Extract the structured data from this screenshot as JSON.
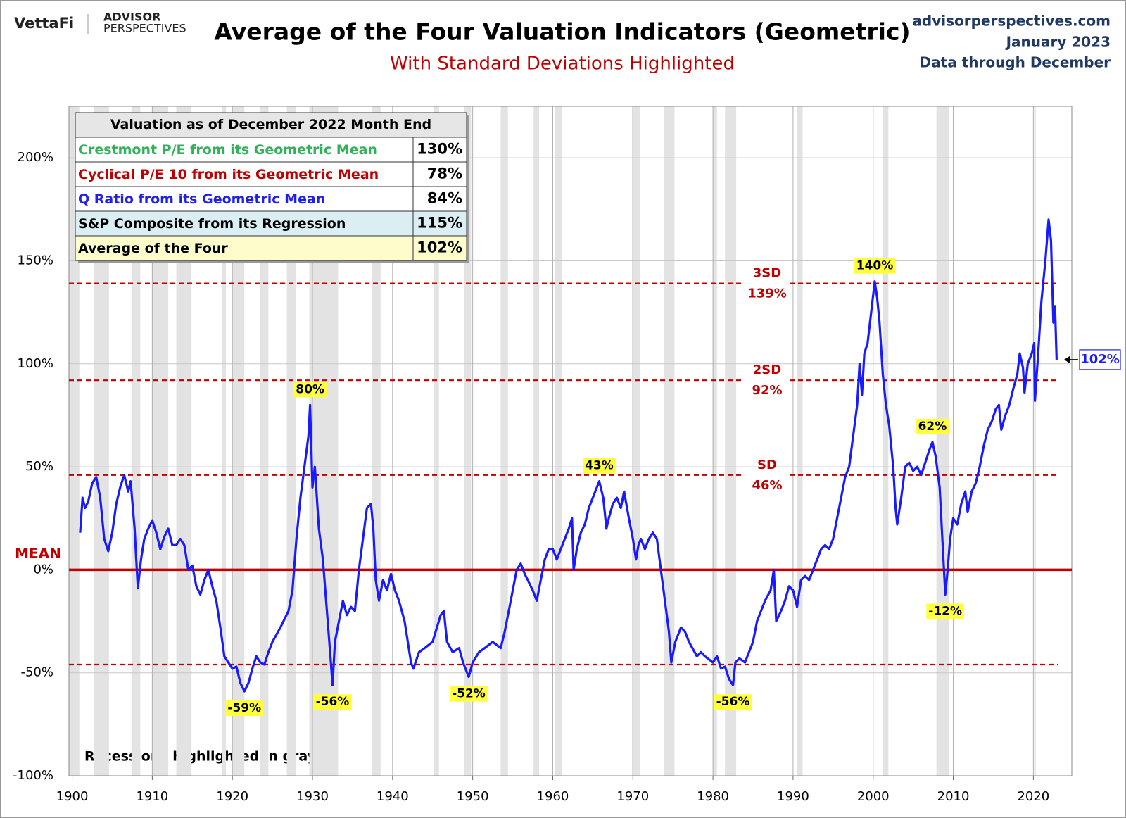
{
  "header": {
    "logo": "VettaFi",
    "brand_top": "ADVISOR",
    "brand_bottom": "PERSPECTIVES",
    "site": "advisorperspectives.com",
    "date": "January 2023",
    "data_note": "Data through December"
  },
  "chart_data": {
    "type": "line",
    "title": "Average of the Four Valuation Indicators (Geometric)",
    "subtitle": "With Standard Deviations Highlighted",
    "note": "Recessions highlighted in gray",
    "xlim": [
      1899.6,
      2024.8
    ],
    "xticks": [
      1900,
      1910,
      1920,
      1930,
      1940,
      1950,
      1960,
      1970,
      1980,
      1990,
      2000,
      2010,
      2020
    ],
    "ylim": [
      -100,
      225
    ],
    "yticks": [
      {
        "value": -100,
        "label": "-100%"
      },
      {
        "value": -50,
        "label": "-50%"
      },
      {
        "value": 0,
        "label": "0%"
      },
      {
        "value": 50,
        "label": "50%"
      },
      {
        "value": 100,
        "label": "100%"
      },
      {
        "value": 150,
        "label": "150%"
      },
      {
        "value": 200,
        "label": "200%"
      }
    ],
    "grid": true,
    "x": [
      1901.0,
      1901.3,
      1901.6,
      1902.0,
      1902.5,
      1903.0,
      1903.5,
      1904.0,
      1904.5,
      1905.0,
      1905.5,
      1906.0,
      1906.5,
      1907.0,
      1907.3,
      1907.8,
      1908.0,
      1908.2,
      1908.6,
      1909.0,
      1909.5,
      1910.0,
      1910.5,
      1911.0,
      1911.5,
      1912.0,
      1912.5,
      1913.0,
      1913.5,
      1914.0,
      1914.5,
      1915.0,
      1915.5,
      1916.0,
      1916.5,
      1917.0,
      1917.5,
      1918.0,
      1918.5,
      1919.0,
      1919.5,
      1920.0,
      1920.5,
      1921.0,
      1921.5,
      1922.0,
      1922.5,
      1923.0,
      1923.5,
      1924.0,
      1924.5,
      1925.0,
      1926.0,
      1927.0,
      1927.5,
      1928.0,
      1928.5,
      1929.0,
      1929.5,
      1929.7,
      1930.0,
      1930.3,
      1930.8,
      1931.3,
      1931.8,
      1932.3,
      1932.5,
      1932.8,
      1933.3,
      1933.8,
      1934.3,
      1934.8,
      1935.3,
      1935.8,
      1936.3,
      1936.8,
      1937.3,
      1937.6,
      1937.9,
      1938.3,
      1938.8,
      1939.3,
      1939.8,
      1940.3,
      1940.8,
      1941.5,
      1942.3,
      1942.6,
      1943.3,
      1944.0,
      1945.0,
      1946.0,
      1946.4,
      1946.8,
      1947.5,
      1948.3,
      1948.8,
      1949.5,
      1950.0,
      1950.8,
      1951.5,
      1952.5,
      1953.5,
      1954.0,
      1954.5,
      1955.0,
      1955.5,
      1956.0,
      1956.5,
      1957.5,
      1958.0,
      1958.5,
      1959.0,
      1959.5,
      1960.0,
      1960.5,
      1961.0,
      1961.5,
      1962.0,
      1962.4,
      1962.6,
      1963.0,
      1963.5,
      1964.0,
      1964.5,
      1965.0,
      1965.5,
      1965.8,
      1966.3,
      1966.7,
      1967.0,
      1967.5,
      1968.0,
      1968.5,
      1968.9,
      1969.5,
      1970.0,
      1970.4,
      1970.7,
      1971.0,
      1971.5,
      1972.0,
      1972.5,
      1973.0,
      1973.5,
      1974.0,
      1974.5,
      1974.8,
      1975.3,
      1976.0,
      1976.5,
      1977.0,
      1978.0,
      1978.5,
      1979.0,
      1980.0,
      1980.5,
      1981.0,
      1981.5,
      1982.0,
      1982.5,
      1982.8,
      1983.3,
      1984.0,
      1984.5,
      1985.0,
      1985.5,
      1986.0,
      1986.5,
      1987.2,
      1987.6,
      1987.9,
      1988.5,
      1989.0,
      1989.5,
      1990.0,
      1990.5,
      1991.0,
      1991.5,
      1992.0,
      1992.5,
      1993.0,
      1993.5,
      1994.0,
      1994.5,
      1995.0,
      1995.5,
      1996.0,
      1996.5,
      1997.0,
      1997.5,
      1998.0,
      1998.3,
      1998.6,
      1998.9,
      1999.3,
      1999.6,
      1999.9,
      2000.2,
      2000.5,
      2000.8,
      2001.2,
      2001.6,
      2002.0,
      2002.5,
      2002.8,
      2003.0,
      2003.5,
      2004.0,
      2004.5,
      2005.0,
      2005.5,
      2006.0,
      2006.5,
      2007.0,
      2007.4,
      2007.8,
      2008.3,
      2008.7,
      2009.0,
      2009.3,
      2009.6,
      2010.0,
      2010.5,
      2011.0,
      2011.5,
      2011.8,
      2012.3,
      2012.8,
      2013.3,
      2013.8,
      2014.3,
      2014.8,
      2015.3,
      2015.7,
      2016.0,
      2016.5,
      2017.0,
      2017.5,
      2018.0,
      2018.3,
      2018.7,
      2018.9,
      2019.3,
      2019.8,
      2020.1,
      2020.2,
      2020.6,
      2021.0,
      2021.5,
      2021.9,
      2022.2,
      2022.5,
      2022.7,
      2022.9
    ],
    "series": [
      {
        "color": "#1a1aff",
        "values": [
          18,
          35,
          30,
          33,
          42,
          45,
          35,
          15,
          9,
          18,
          32,
          40,
          46,
          38,
          43,
          20,
          5,
          -9,
          5,
          15,
          20,
          24,
          18,
          10,
          16,
          20,
          12,
          12,
          15,
          12,
          0,
          2,
          -8,
          -12,
          -5,
          0,
          -8,
          -15,
          -28,
          -42,
          -45,
          -48,
          -47,
          -55,
          -59,
          -55,
          -48,
          -42,
          -45,
          -46,
          -40,
          -35,
          -28,
          -20,
          -10,
          15,
          35,
          50,
          65,
          80,
          40,
          50,
          20,
          5,
          -20,
          -45,
          -56,
          -35,
          -25,
          -15,
          -22,
          -18,
          -20,
          0,
          15,
          30,
          32,
          20,
          -5,
          -15,
          -5,
          -10,
          -2,
          -10,
          -15,
          -25,
          -45,
          -48,
          -40,
          -38,
          -35,
          -22,
          -20,
          -35,
          -40,
          -38,
          -45,
          -52,
          -45,
          -40,
          -38,
          -35,
          -38,
          -30,
          -20,
          -10,
          0,
          3,
          -2,
          -10,
          -15,
          -5,
          5,
          10,
          10,
          5,
          10,
          15,
          20,
          25,
          0,
          10,
          18,
          22,
          30,
          35,
          40,
          43,
          35,
          20,
          25,
          32,
          35,
          30,
          38,
          25,
          15,
          5,
          12,
          15,
          10,
          15,
          18,
          15,
          0,
          -15,
          -30,
          -45,
          -35,
          -28,
          -30,
          -35,
          -42,
          -40,
          -42,
          -45,
          -42,
          -48,
          -47,
          -53,
          -56,
          -45,
          -43,
          -45,
          -40,
          -35,
          -25,
          -20,
          -15,
          -10,
          0,
          -25,
          -20,
          -15,
          -8,
          -10,
          -18,
          -5,
          -3,
          -5,
          0,
          5,
          10,
          12,
          10,
          15,
          25,
          35,
          45,
          50,
          65,
          80,
          100,
          85,
          105,
          110,
          120,
          130,
          140,
          132,
          120,
          95,
          80,
          70,
          50,
          30,
          22,
          35,
          50,
          52,
          48,
          50,
          46,
          52,
          58,
          62,
          55,
          40,
          10,
          -12,
          0,
          15,
          25,
          22,
          32,
          38,
          28,
          38,
          42,
          50,
          60,
          68,
          72,
          78,
          80,
          68,
          75,
          80,
          88,
          95,
          105,
          98,
          86,
          100,
          105,
          110,
          82,
          105,
          130,
          150,
          170,
          160,
          120,
          128,
          102
        ]
      }
    ],
    "end_annotation": {
      "x": 2022.9,
      "value": 102,
      "label": "102%"
    },
    "annotations": [
      {
        "x": 1929.7,
        "value": 80,
        "label": "80%"
      },
      {
        "x": 1921.5,
        "value": -59,
        "label": "-59%"
      },
      {
        "x": 1932.5,
        "value": -56,
        "label": "-56%"
      },
      {
        "x": 1949.5,
        "value": -52,
        "label": "-52%"
      },
      {
        "x": 1965.8,
        "value": 43,
        "label": "43%"
      },
      {
        "x": 1982.5,
        "value": -56,
        "label": "-56%"
      },
      {
        "x": 2000.2,
        "value": 140,
        "label": "140%"
      },
      {
        "x": 2007.4,
        "value": 62,
        "label": "62%"
      },
      {
        "x": 2009.0,
        "value": -12,
        "label": "-12%"
      }
    ],
    "reference_lines": [
      {
        "value": 0,
        "label": "MEAN"
      },
      {
        "value": 46,
        "label": "SD",
        "value_label": "46%"
      },
      {
        "value": 92,
        "label": "2SD",
        "value_label": "92%"
      },
      {
        "value": 139,
        "label": "3SD",
        "value_label": "139%"
      },
      {
        "value": -46
      }
    ],
    "recessions": [
      [
        1899.6,
        1900.9
      ],
      [
        1902.7,
        1904.6
      ],
      [
        1907.4,
        1908.5
      ],
      [
        1910.0,
        1912.0
      ],
      [
        1913.0,
        1914.9
      ],
      [
        1918.7,
        1919.2
      ],
      [
        1920.0,
        1921.5
      ],
      [
        1923.4,
        1924.5
      ],
      [
        1926.8,
        1927.9
      ],
      [
        1929.6,
        1933.2
      ],
      [
        1937.4,
        1938.5
      ],
      [
        1945.1,
        1945.8
      ],
      [
        1948.9,
        1949.8
      ],
      [
        1953.5,
        1954.4
      ],
      [
        1957.6,
        1958.3
      ],
      [
        1960.3,
        1961.1
      ],
      [
        1969.9,
        1970.9
      ],
      [
        1973.9,
        1975.2
      ],
      [
        1980.0,
        1980.5
      ],
      [
        1981.5,
        1982.9
      ],
      [
        1990.5,
        1991.2
      ],
      [
        2001.2,
        2001.9
      ],
      [
        2007.9,
        2009.5
      ],
      [
        2020.1,
        2020.3
      ]
    ],
    "table": {
      "title": "Valuation as of December 2022 Month End",
      "rows": [
        {
          "name": "Crestmont P/E from its Geometric Mean",
          "value": "130%",
          "color": "#33b05a"
        },
        {
          "name": "Cyclical P/E 10 from its Geometric Mean",
          "value": "78%",
          "color": "#c00000"
        },
        {
          "name": "Q Ratio from its Geometric Mean",
          "value": "84%",
          "color": "#2020ee"
        },
        {
          "name": "S&P Composite from its Regression",
          "value": "115%",
          "color": "#000000",
          "background": "#daeef3"
        },
        {
          "name": "Average of the Four",
          "value": "102%",
          "color": "#000000",
          "background": "#fdfdcc"
        }
      ]
    }
  }
}
